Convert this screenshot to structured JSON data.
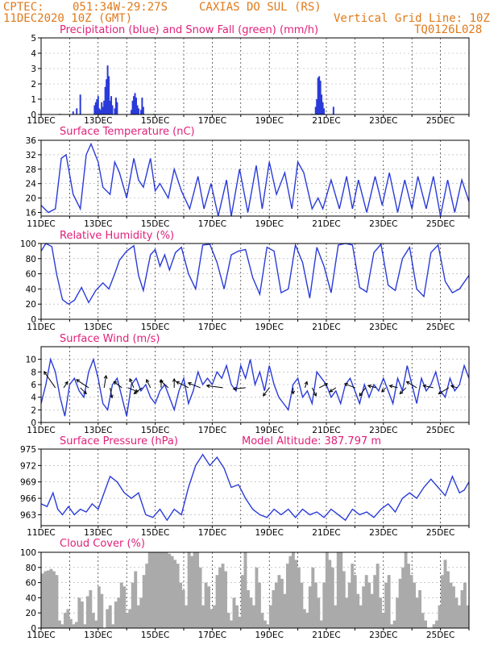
{
  "header": {
    "center": "CPTEC:",
    "coords": "051:34W-29:27S",
    "location": "CAXIAS DO SUL (RS)",
    "date": "11DEC2020 10Z (GMT)",
    "grid_note": "Vertical Grid Line: 10Z",
    "model": "TQ0126L028"
  },
  "colors": {
    "header": "#e07a1a",
    "title": "#e0207a",
    "series": "#2a3bd8",
    "cloud": "#aaaaaa",
    "wind_arrow": "#000000"
  },
  "x_labels": [
    "11DEC",
    "13DEC",
    "15DEC",
    "17DEC",
    "19DEC",
    "21DEC",
    "23DEC",
    "25DEC"
  ],
  "chart_data": [
    {
      "type": "bar",
      "title": "Precipitation (blue) and Snow Fall (green) (mm/h)",
      "ylim": [
        0,
        5
      ],
      "yticks": [
        "0",
        "1",
        "2",
        "3",
        "4",
        "5"
      ],
      "xlim": [
        0,
        360
      ],
      "series": [
        {
          "color": "#2a3bd8",
          "points": [
            [
              27,
              0.2
            ],
            [
              30,
              0.4
            ],
            [
              33,
              1.3
            ],
            [
              45,
              0.6
            ],
            [
              46,
              0.8
            ],
            [
              47,
              1.0
            ],
            [
              48,
              1.2
            ],
            [
              49,
              0.4
            ],
            [
              50,
              0.3
            ],
            [
              51,
              0.8
            ],
            [
              52,
              0.5
            ],
            [
              53,
              0.9
            ],
            [
              54,
              1.8
            ],
            [
              55,
              2.3
            ],
            [
              56,
              3.2
            ],
            [
              57,
              2.5
            ],
            [
              58,
              0.9
            ],
            [
              59,
              1.2
            ],
            [
              60,
              0.6
            ],
            [
              62,
              0.4
            ],
            [
              63,
              1.1
            ],
            [
              64,
              0.8
            ],
            [
              76,
              0.3
            ],
            [
              77,
              0.9
            ],
            [
              78,
              1.2
            ],
            [
              79,
              1.4
            ],
            [
              80,
              1.1
            ],
            [
              81,
              0.6
            ],
            [
              82,
              0.4
            ],
            [
              84,
              0.3
            ],
            [
              85,
              1.1
            ],
            [
              86,
              0.5
            ],
            [
              231,
              0.5
            ],
            [
              232,
              1.0
            ],
            [
              233,
              2.4
            ],
            [
              234,
              2.5
            ],
            [
              235,
              2.2
            ],
            [
              236,
              1.3
            ],
            [
              237,
              0.8
            ],
            [
              238,
              0.4
            ],
            [
              246,
              0.5
            ]
          ]
        },
        {
          "color": "#22aa22",
          "points": [
            [
              16,
              0.05
            ],
            [
              95,
              0.05
            ],
            [
              210,
              0.05
            ],
            [
              228,
              0.05
            ]
          ]
        }
      ]
    },
    {
      "type": "line",
      "title": "Surface Temperature (nC)",
      "ylim": [
        15,
        36
      ],
      "yticks": [
        "16",
        "20",
        "24",
        "28",
        "32",
        "36"
      ],
      "xlim": [
        0,
        360
      ],
      "x": [
        0,
        6,
        12,
        17,
        21,
        27,
        33,
        38,
        42,
        48,
        52,
        58,
        62,
        66,
        72,
        78,
        82,
        86,
        92,
        96,
        100,
        107,
        112,
        118,
        125,
        132,
        137,
        143,
        149,
        156,
        160,
        167,
        174,
        181,
        186,
        192,
        198,
        205,
        211,
        216,
        221,
        228,
        233,
        237,
        244,
        251,
        257,
        262,
        267,
        274,
        281,
        287,
        293,
        300,
        306,
        312,
        317,
        324,
        330,
        336,
        342,
        348,
        354,
        360
      ],
      "values": [
        18,
        16,
        17,
        31,
        32,
        21,
        17,
        32,
        35,
        30,
        23,
        21,
        30,
        27,
        20,
        31,
        25,
        23,
        31,
        22,
        24,
        20,
        28,
        22,
        17,
        26,
        17,
        24,
        15,
        25,
        15,
        28,
        16,
        29,
        17,
        30,
        21,
        27,
        17,
        30,
        27,
        17,
        20,
        17,
        25,
        17,
        26,
        17,
        25,
        16,
        26,
        18,
        27,
        16,
        25,
        17,
        26,
        17,
        26,
        15,
        25,
        16,
        25,
        19
      ]
    },
    {
      "type": "line",
      "title": "Relative Humidity (%)",
      "ylim": [
        0,
        100
      ],
      "yticks": [
        "0",
        "20",
        "40",
        "60",
        "80",
        "100"
      ],
      "xlim": [
        0,
        360
      ],
      "x": [
        0,
        4,
        9,
        13,
        18,
        23,
        28,
        34,
        40,
        46,
        52,
        57,
        62,
        66,
        72,
        78,
        82,
        86,
        92,
        96,
        100,
        104,
        108,
        113,
        118,
        124,
        130,
        136,
        142,
        148,
        154,
        160,
        166,
        172,
        178,
        184,
        190,
        196,
        202,
        208,
        214,
        220,
        226,
        232,
        238,
        244,
        250,
        256,
        262,
        268,
        274,
        280,
        286,
        292,
        298,
        304,
        310,
        316,
        322,
        328,
        334,
        340,
        346,
        352,
        360
      ],
      "values": [
        90,
        100,
        96,
        60,
        26,
        20,
        25,
        42,
        22,
        38,
        48,
        40,
        60,
        78,
        90,
        97,
        58,
        38,
        85,
        92,
        70,
        85,
        65,
        88,
        95,
        60,
        40,
        98,
        99,
        75,
        40,
        85,
        90,
        92,
        55,
        33,
        95,
        90,
        35,
        40,
        98,
        75,
        28,
        95,
        70,
        35,
        98,
        100,
        98,
        42,
        36,
        88,
        99,
        45,
        38,
        80,
        95,
        40,
        30,
        88,
        98,
        50,
        35,
        40,
        58
      ]
    },
    {
      "type": "line",
      "title": "Surface Wind (m/s)",
      "ylim": [
        0,
        12
      ],
      "yticks": [
        "0",
        "2",
        "4",
        "6",
        "8",
        "10"
      ],
      "xlim": [
        0,
        360
      ],
      "x": [
        0,
        4,
        8,
        12,
        16,
        20,
        24,
        28,
        32,
        36,
        40,
        44,
        48,
        52,
        56,
        60,
        64,
        68,
        72,
        76,
        80,
        84,
        88,
        92,
        96,
        100,
        104,
        108,
        112,
        116,
        120,
        124,
        128,
        132,
        136,
        140,
        144,
        148,
        152,
        156,
        160,
        164,
        168,
        172,
        176,
        180,
        184,
        188,
        192,
        196,
        200,
        204,
        208,
        212,
        216,
        220,
        224,
        228,
        232,
        236,
        240,
        244,
        248,
        252,
        256,
        260,
        264,
        268,
        272,
        276,
        280,
        284,
        288,
        292,
        296,
        300,
        304,
        308,
        312,
        316,
        320,
        324,
        328,
        332,
        336,
        340,
        344,
        348,
        352,
        356,
        360
      ],
      "values": [
        3,
        6,
        10,
        8,
        4,
        1,
        6,
        7,
        5,
        4,
        8,
        10,
        7,
        3,
        2,
        6,
        7,
        4,
        1,
        6,
        7,
        5,
        6,
        4,
        3,
        5,
        6,
        4,
        2,
        5,
        7,
        3,
        5,
        8,
        6,
        7,
        6,
        8,
        7,
        9,
        6,
        5,
        9,
        7,
        10,
        6,
        8,
        5,
        9,
        6,
        4,
        3,
        2,
        6,
        7,
        4,
        5,
        3,
        8,
        7,
        6,
        4,
        5,
        3,
        6,
        7,
        5,
        3,
        6,
        4,
        6,
        5,
        7,
        5,
        3,
        7,
        5,
        9,
        6,
        3,
        7,
        5,
        6,
        8,
        5,
        4,
        7,
        5,
        6,
        9,
        7
      ]
    },
    {
      "type": "line",
      "title": "Surface Pressure (hPa)",
      "annotation": "Model Altitude: 387.797 m",
      "ylim": [
        961,
        975
      ],
      "yticks": [
        "963",
        "966",
        "969",
        "972",
        "975"
      ],
      "xlim": [
        0,
        360
      ],
      "x": [
        0,
        5,
        10,
        14,
        18,
        23,
        28,
        33,
        38,
        43,
        48,
        53,
        58,
        64,
        70,
        76,
        82,
        88,
        94,
        100,
        106,
        112,
        118,
        124,
        130,
        136,
        142,
        148,
        154,
        160,
        166,
        172,
        178,
        184,
        190,
        196,
        202,
        208,
        214,
        220,
        226,
        232,
        238,
        244,
        250,
        256,
        262,
        268,
        274,
        280,
        286,
        292,
        298,
        304,
        310,
        316,
        322,
        328,
        334,
        340,
        346,
        352,
        356,
        360
      ],
      "values": [
        965,
        964.5,
        967,
        964,
        963,
        964.5,
        963,
        964,
        963.5,
        965,
        964,
        967,
        970,
        969,
        967,
        966,
        967,
        963,
        962.5,
        964,
        962,
        964,
        963,
        968,
        972,
        974,
        972,
        973.5,
        971.5,
        968,
        968.5,
        966,
        964,
        963,
        962.5,
        964,
        963,
        964,
        962.5,
        964,
        963,
        963.5,
        962.5,
        964,
        963,
        962,
        964,
        963,
        963.5,
        962.5,
        964,
        965,
        963.5,
        966,
        967,
        966,
        968,
        969.5,
        968,
        966.5,
        970,
        967,
        967.5,
        969
      ]
    },
    {
      "type": "bar",
      "title": "Cloud Cover (%)",
      "ylim": [
        0,
        100
      ],
      "yticks": [
        "0",
        "20",
        "40",
        "60",
        "80",
        "100"
      ],
      "xlim": [
        0,
        360
      ],
      "values": [
        72,
        75,
        76,
        78,
        75,
        70,
        10,
        5,
        20,
        25,
        12,
        5,
        8,
        40,
        35,
        5,
        42,
        50,
        20,
        10,
        55,
        45,
        0,
        25,
        30,
        5,
        35,
        40,
        60,
        55,
        20,
        25,
        60,
        75,
        30,
        40,
        70,
        85,
        100,
        100,
        100,
        100,
        100,
        100,
        100,
        98,
        95,
        90,
        85,
        60,
        50,
        30,
        100,
        95,
        100,
        100,
        80,
        30,
        60,
        55,
        25,
        30,
        70,
        80,
        85,
        75,
        20,
        10,
        40,
        30,
        15,
        70,
        100,
        50,
        40,
        30,
        80,
        60,
        20,
        10,
        5,
        30,
        50,
        60,
        70,
        65,
        45,
        85,
        95,
        100,
        90,
        80,
        60,
        25,
        20,
        55,
        80,
        60,
        40,
        10,
        60,
        100,
        90,
        80,
        30,
        100,
        100,
        75,
        40,
        60,
        85,
        70,
        45,
        30,
        55,
        70,
        60,
        45,
        70,
        85,
        40,
        20,
        60,
        70,
        5,
        10,
        40,
        65,
        80,
        100,
        85,
        70,
        60,
        40,
        50,
        20,
        10,
        0,
        0,
        5,
        10,
        30,
        70,
        90,
        75,
        60,
        55,
        40,
        30,
        50,
        60,
        30
      ]
    }
  ],
  "wind_arrows": [
    [
      12,
      -2.8,
      4.0
    ],
    [
      19,
      1.0,
      1.5
    ],
    [
      33,
      1.5,
      -1.5
    ],
    [
      40,
      -3.0,
      2.0
    ],
    [
      53,
      0.5,
      3.0
    ],
    [
      58,
      0.5,
      -2.5
    ],
    [
      68,
      -2.0,
      1.5
    ],
    [
      73,
      2.5,
      -1.0
    ],
    [
      78,
      -1.0,
      2.2
    ],
    [
      85,
      -2.0,
      -1.5
    ],
    [
      92,
      -1.0,
      2.0
    ],
    [
      101,
      0.0,
      2.0
    ],
    [
      107,
      -2.0,
      1.8
    ],
    [
      112,
      0.0,
      2.2
    ],
    [
      124,
      -3.0,
      1.5
    ],
    [
      134,
      -3.0,
      1.2
    ],
    [
      153,
      -4.0,
      0.5
    ],
    [
      172,
      -3.0,
      -0.3
    ],
    [
      192,
      -1.5,
      -2.0
    ],
    [
      212,
      0.0,
      -1.5
    ],
    [
      222,
      0.5,
      1.5
    ],
    [
      228,
      1.0,
      -2.0
    ],
    [
      234,
      2.0,
      1.0
    ],
    [
      248,
      -1.5,
      -1.0
    ],
    [
      264,
      -2.5,
      1.0
    ],
    [
      273,
      -1.5,
      -2.0
    ],
    [
      282,
      -2.0,
      0.5
    ],
    [
      290,
      -1.0,
      -1.0
    ],
    [
      300,
      -2.0,
      0.5
    ],
    [
      307,
      -1.5,
      -1.5
    ],
    [
      316,
      -2.5,
      1.5
    ],
    [
      330,
      -2.5,
      0.5
    ],
    [
      343,
      -2.5,
      -1.5
    ],
    [
      350,
      -1.5,
      0.5
    ]
  ]
}
